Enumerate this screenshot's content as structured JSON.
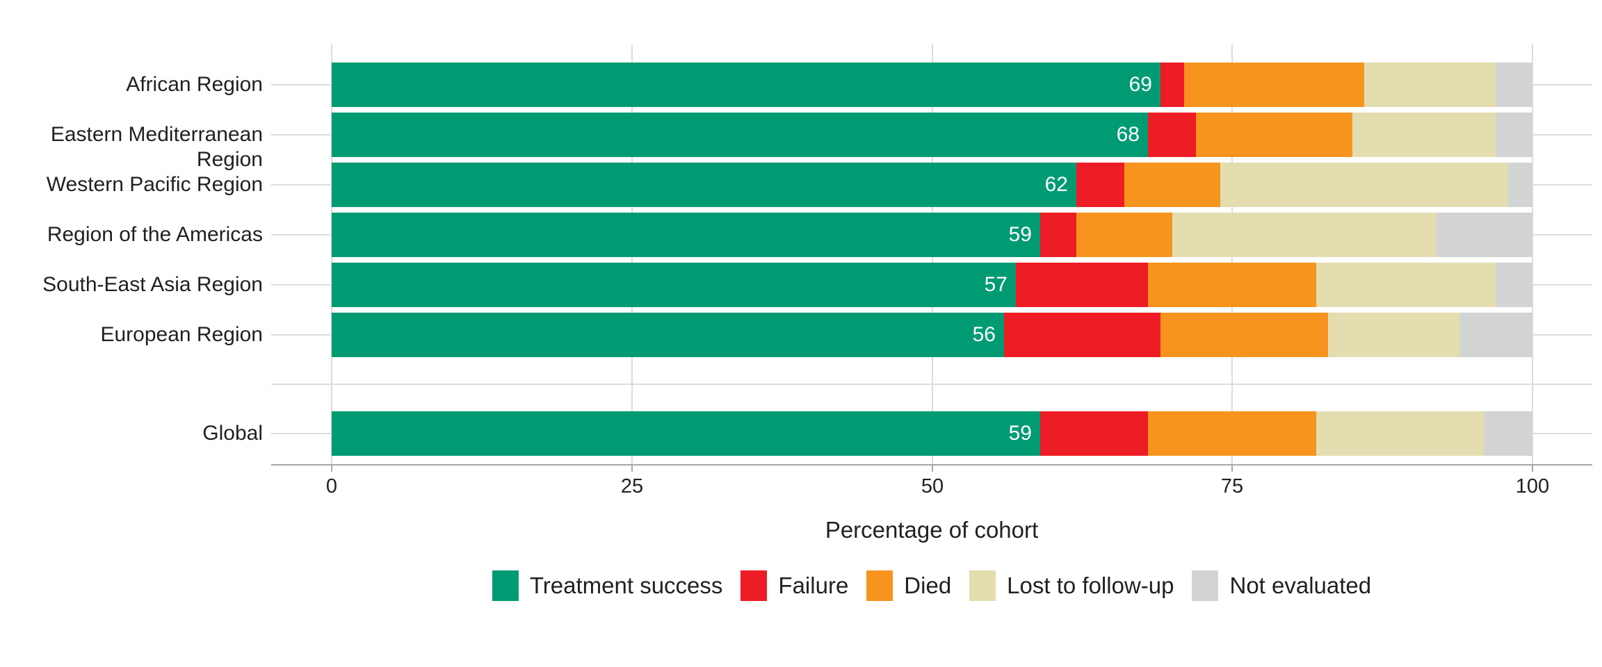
{
  "chart_data": {
    "type": "bar",
    "orientation": "horizontal-stacked",
    "title": "",
    "xlabel": "Percentage of cohort",
    "xlim": [
      0,
      100
    ],
    "x_ticks": [
      "0",
      "25",
      "50",
      "75",
      "100"
    ],
    "x_tick_values": [
      0,
      25,
      50,
      75,
      100
    ],
    "grid": "major",
    "legend_position": "bottom",
    "series_names": [
      "Treatment success",
      "Failure",
      "Died",
      "Lost to follow-up",
      "Not evaluated"
    ],
    "series_colors": [
      "#009b72",
      "#ee1c25",
      "#f7941e",
      "#e3ddaf",
      "#d1d3d4"
    ],
    "categories": [
      "African Region",
      "Eastern Mediterranean Region",
      "Western Pacific Region",
      "Region of the Americas",
      "South-East Asia Region",
      "European Region",
      "Global"
    ],
    "rows": [
      {
        "label": "African Region",
        "group": "regions",
        "values": [
          69,
          2,
          15,
          11,
          3
        ],
        "success_label": "69"
      },
      {
        "label": "Eastern Mediterranean Region",
        "group": "regions",
        "values": [
          68,
          4,
          13,
          12,
          3
        ],
        "success_label": "68"
      },
      {
        "label": "Western Pacific Region",
        "group": "regions",
        "values": [
          62,
          4,
          8,
          24,
          2
        ],
        "success_label": "62"
      },
      {
        "label": "Region of the Americas",
        "group": "regions",
        "values": [
          59,
          3,
          8,
          22,
          8
        ],
        "success_label": "59"
      },
      {
        "label": "South-East Asia Region",
        "group": "regions",
        "values": [
          57,
          11,
          14,
          15,
          3
        ],
        "success_label": "57"
      },
      {
        "label": "European Region",
        "group": "regions",
        "values": [
          56,
          13,
          14,
          11,
          6
        ],
        "success_label": "56"
      },
      {
        "label": "Global",
        "group": "global",
        "values": [
          59,
          9,
          14,
          14,
          4
        ],
        "success_label": "59"
      }
    ],
    "colors": {
      "value_label": "#ffffff",
      "gridline": "#dcdcdc",
      "axis": "#a6a8ab",
      "text": "#231f20",
      "background": "#ffffff"
    }
  }
}
